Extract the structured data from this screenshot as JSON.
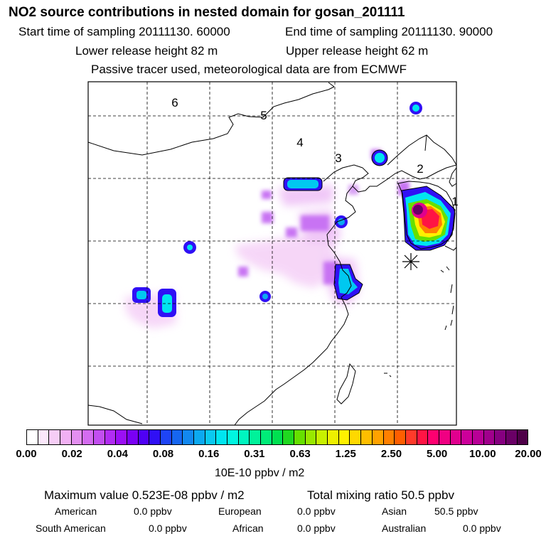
{
  "header": {
    "title": "NO2 source contributions in nested domain for gosan_201111",
    "start_time": "Start time of sampling 20111130. 60000",
    "end_time": "End time of sampling 20111130. 90000",
    "lower_height": "Lower release height   82 m",
    "upper_height": "Upper release height   62 m",
    "tracer_note": "Passive tracer used, meteorological data are from ECMWF"
  },
  "map": {
    "region_labels": [
      "6",
      "5",
      "4",
      "3",
      "2",
      "1"
    ]
  },
  "legend": {
    "tick_labels": [
      "0.00",
      "0.02",
      "0.04",
      "0.08",
      "0.16",
      "0.31",
      "0.63",
      "1.25",
      "2.50",
      "5.00",
      "10.00",
      "20.00"
    ],
    "colors": [
      "#ffffff",
      "#fbe7fb",
      "#f6cdf6",
      "#f1b0f3",
      "#e38ff0",
      "#d46cf0",
      "#c24ef0",
      "#b12cf3",
      "#9b0ff5",
      "#7a00f5",
      "#4f00f5",
      "#3010f5",
      "#1e44f5",
      "#1666f0",
      "#1288f0",
      "#0ca9f0",
      "#0ac9f0",
      "#00e5f0",
      "#00f5e1",
      "#00f5c0",
      "#00f29a",
      "#00ec78",
      "#00e050",
      "#20d820",
      "#66e000",
      "#99e800",
      "#c8f000",
      "#eef000",
      "#fff000",
      "#ffd800",
      "#ffbe00",
      "#ffa200",
      "#ff8000",
      "#ff5e00",
      "#ff3a2a",
      "#ff1444",
      "#ff0070",
      "#f00082",
      "#e0008e",
      "#cc009a",
      "#b80096",
      "#a0008c",
      "#860080",
      "#6a0066",
      "#4e0048"
    ],
    "units": "10E-10 ppbv / m2"
  },
  "summary": {
    "max_value_label": "Maximum value  0.523E-08 ppbv / m2",
    "total_label": "Total mixing ratio       50.5 ppbv",
    "sources": [
      {
        "name": "American",
        "value": "0.0 ppbv"
      },
      {
        "name": "European",
        "value": "0.0 ppbv"
      },
      {
        "name": "Asian",
        "value": "50.5 ppbv"
      },
      {
        "name": "South American",
        "value": "0.0 ppbv"
      },
      {
        "name": "African",
        "value": "0.0 ppbv"
      },
      {
        "name": "Australian",
        "value": "0.0 ppbv"
      }
    ]
  }
}
